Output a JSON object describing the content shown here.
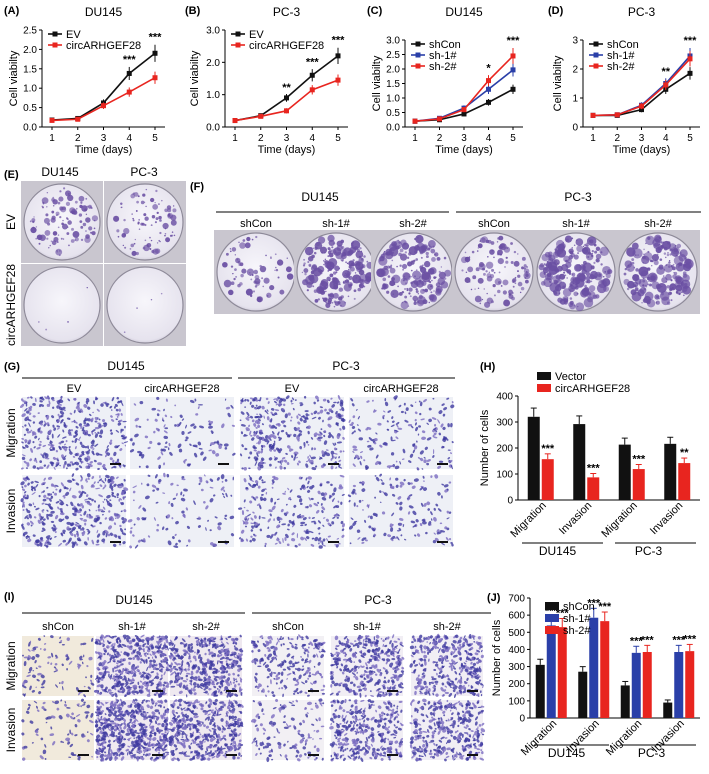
{
  "colors": {
    "black": "#111111",
    "red": "#e8251f",
    "blue": "#2a3fa8",
    "stain": "#6a4fa3"
  },
  "line_panels": [
    {
      "label": "(A)",
      "title": "DU145",
      "ylabel": "Cell viabilty",
      "xlabel": "Time (days)",
      "yticks": [
        "0.0",
        "0.5",
        "1.0",
        "1.5",
        "2.0",
        "2.5"
      ],
      "xticks": [
        "1",
        "2",
        "3",
        "4",
        "5"
      ],
      "series": [
        {
          "name": "EV",
          "values": [
            0.18,
            0.22,
            0.62,
            1.38,
            1.9
          ]
        },
        {
          "name": "circARHGEF28",
          "values": [
            0.17,
            0.2,
            0.55,
            0.9,
            1.27
          ]
        }
      ],
      "stars": [
        {
          "x": 4,
          "text": "***"
        },
        {
          "x": 5,
          "text": "***"
        }
      ]
    },
    {
      "label": "(B)",
      "title": "PC-3",
      "ylabel": "Cell viabilty",
      "xlabel": "Time (days)",
      "yticks": [
        "0.0",
        "1.0",
        "2.0",
        "3.0"
      ],
      "xticks": [
        "1",
        "2",
        "3",
        "4",
        "5"
      ],
      "series": [
        {
          "name": "EV",
          "values": [
            0.2,
            0.35,
            0.9,
            1.6,
            2.2
          ]
        },
        {
          "name": "circARHGEF28",
          "values": [
            0.2,
            0.33,
            0.5,
            1.15,
            1.45
          ]
        }
      ],
      "stars": [
        {
          "x": 3,
          "text": "**"
        },
        {
          "x": 4,
          "text": "***"
        },
        {
          "x": 5,
          "text": "***"
        }
      ]
    },
    {
      "label": "(C)",
      "title": "DU145",
      "ylabel": "Cell viabilty",
      "xlabel": "Time (days)",
      "yticks": [
        "0.0",
        "0.5",
        "1.0",
        "1.5",
        "2.0",
        "2.5",
        "3.0"
      ],
      "xticks": [
        "1",
        "2",
        "3",
        "4",
        "5"
      ],
      "series": [
        {
          "name": "shCon",
          "values": [
            0.2,
            0.25,
            0.45,
            0.85,
            1.3
          ]
        },
        {
          "name": "sh-1#",
          "values": [
            0.2,
            0.3,
            0.65,
            1.3,
            1.97
          ]
        },
        {
          "name": "sh-2#",
          "values": [
            0.2,
            0.28,
            0.6,
            1.6,
            2.45
          ]
        }
      ],
      "stars": [
        {
          "x": 4,
          "text": "*"
        },
        {
          "x": 5,
          "text": "***"
        }
      ]
    },
    {
      "label": "(D)",
      "title": "PC-3",
      "ylabel": "Cell viabilty",
      "xlabel": "Time (days)",
      "yticks": [
        "0",
        "1",
        "2",
        "3"
      ],
      "xticks": [
        "1",
        "2",
        "3",
        "4",
        "5"
      ],
      "series": [
        {
          "name": "shCon",
          "values": [
            0.4,
            0.4,
            0.6,
            1.3,
            1.85
          ]
        },
        {
          "name": "sh-1#",
          "values": [
            0.4,
            0.42,
            0.75,
            1.5,
            2.45
          ]
        },
        {
          "name": "sh-2#",
          "values": [
            0.4,
            0.42,
            0.72,
            1.45,
            2.35
          ]
        }
      ],
      "stars": [
        {
          "x": 4,
          "text": "**"
        },
        {
          "x": 5,
          "text": "***"
        }
      ]
    }
  ],
  "panel_e": {
    "label": "(E)",
    "cols": [
      "DU145",
      "PC-3"
    ],
    "rows": [
      "EV",
      "circARHGEF28"
    ]
  },
  "panel_f": {
    "label": "(F)",
    "groups": [
      "DU145",
      "PC-3"
    ],
    "cols": [
      "shCon",
      "sh-1#",
      "sh-2#",
      "shCon",
      "sh-1#",
      "sh-2#"
    ]
  },
  "panel_g": {
    "label": "(G)",
    "groups": [
      "DU145",
      "PC-3"
    ],
    "cols": [
      "EV",
      "circARHGEF28",
      "EV",
      "circARHGEF28"
    ],
    "rows": [
      "Migration",
      "Invasion"
    ]
  },
  "panel_i": {
    "label": "(I)",
    "groups": [
      "DU145",
      "PC-3"
    ],
    "cols": [
      "shCon",
      "sh-1#",
      "sh-2#",
      "shCon",
      "sh-1#",
      "sh-2#"
    ],
    "rows": [
      "Migration",
      "Invasion"
    ]
  },
  "bar_panels": [
    {
      "label": "(H)",
      "ylabel": "Number of cells",
      "yticks": [
        "0",
        "100",
        "200",
        "300",
        "400"
      ],
      "categories": [
        "Migration",
        "Invasion",
        "Migration",
        "Invasion"
      ],
      "groups": [
        "DU145",
        "PC-3"
      ],
      "series": [
        {
          "name": "Vector",
          "values": [
            320,
            292,
            213,
            216
          ]
        },
        {
          "name": "circARHGEF28",
          "values": [
            157,
            87,
            119,
            142
          ]
        }
      ],
      "stars": [
        "***",
        "***",
        "***",
        "**"
      ]
    },
    {
      "label": "(J)",
      "ylabel": "Number of cells",
      "yticks": [
        "0",
        "100",
        "200",
        "300",
        "400",
        "500",
        "600",
        "700"
      ],
      "categories": [
        "Migration",
        "Invasion",
        "Migration",
        "Invasion"
      ],
      "groups": [
        "DU145",
        "PC-3"
      ],
      "series": [
        {
          "name": "shCon",
          "values": [
            310,
            270,
            190,
            90
          ]
        },
        {
          "name": "sh-1#",
          "values": [
            540,
            585,
            380,
            385
          ]
        },
        {
          "name": "sh-2#",
          "values": [
            530,
            565,
            385,
            390
          ]
        }
      ],
      "stars": [
        "***",
        "***",
        "***",
        "***"
      ]
    }
  ],
  "chart_data": [
    {
      "type": "line",
      "title": "DU145",
      "xlabel": "Time (days)",
      "ylabel": "Cell viabilty",
      "x": [
        1,
        2,
        3,
        4,
        5
      ],
      "ylim": [
        0,
        2.5
      ],
      "series": [
        {
          "name": "EV",
          "values": [
            0.18,
            0.22,
            0.62,
            1.38,
            1.9
          ]
        },
        {
          "name": "circARHGEF28",
          "values": [
            0.17,
            0.2,
            0.55,
            0.9,
            1.27
          ]
        }
      ]
    },
    {
      "type": "line",
      "title": "PC-3",
      "xlabel": "Time (days)",
      "ylabel": "Cell viabilty",
      "x": [
        1,
        2,
        3,
        4,
        5
      ],
      "ylim": [
        0,
        3.0
      ],
      "series": [
        {
          "name": "EV",
          "values": [
            0.2,
            0.35,
            0.9,
            1.6,
            2.2
          ]
        },
        {
          "name": "circARHGEF28",
          "values": [
            0.2,
            0.33,
            0.5,
            1.15,
            1.45
          ]
        }
      ]
    },
    {
      "type": "line",
      "title": "DU145",
      "xlabel": "Time (days)",
      "ylabel": "Cell viabilty",
      "x": [
        1,
        2,
        3,
        4,
        5
      ],
      "ylim": [
        0,
        3.0
      ],
      "series": [
        {
          "name": "shCon",
          "values": [
            0.2,
            0.25,
            0.45,
            0.85,
            1.3
          ]
        },
        {
          "name": "sh-1#",
          "values": [
            0.2,
            0.3,
            0.65,
            1.3,
            1.97
          ]
        },
        {
          "name": "sh-2#",
          "values": [
            0.2,
            0.28,
            0.6,
            1.6,
            2.45
          ]
        }
      ]
    },
    {
      "type": "line",
      "title": "PC-3",
      "xlabel": "Time (days)",
      "ylabel": "Cell viabilty",
      "x": [
        1,
        2,
        3,
        4,
        5
      ],
      "ylim": [
        0,
        3
      ],
      "series": [
        {
          "name": "shCon",
          "values": [
            0.4,
            0.4,
            0.6,
            1.3,
            1.85
          ]
        },
        {
          "name": "sh-1#",
          "values": [
            0.4,
            0.42,
            0.75,
            1.5,
            2.45
          ]
        },
        {
          "name": "sh-2#",
          "values": [
            0.4,
            0.42,
            0.72,
            1.45,
            2.35
          ]
        }
      ]
    },
    {
      "type": "bar",
      "ylabel": "Number of cells",
      "categories": [
        "Migration",
        "Invasion",
        "Migration",
        "Invasion"
      ],
      "ylim": [
        0,
        400
      ],
      "series": [
        {
          "name": "Vector",
          "values": [
            320,
            292,
            213,
            216
          ]
        },
        {
          "name": "circARHGEF28",
          "values": [
            157,
            87,
            119,
            142
          ]
        }
      ]
    },
    {
      "type": "bar",
      "ylabel": "Number of cells",
      "categories": [
        "Migration",
        "Invasion",
        "Migration",
        "Invasion"
      ],
      "ylim": [
        0,
        700
      ],
      "series": [
        {
          "name": "shCon",
          "values": [
            310,
            270,
            190,
            90
          ]
        },
        {
          "name": "sh-1#",
          "values": [
            540,
            585,
            380,
            385
          ]
        },
        {
          "name": "sh-2#",
          "values": [
            530,
            565,
            385,
            390
          ]
        }
      ]
    }
  ]
}
